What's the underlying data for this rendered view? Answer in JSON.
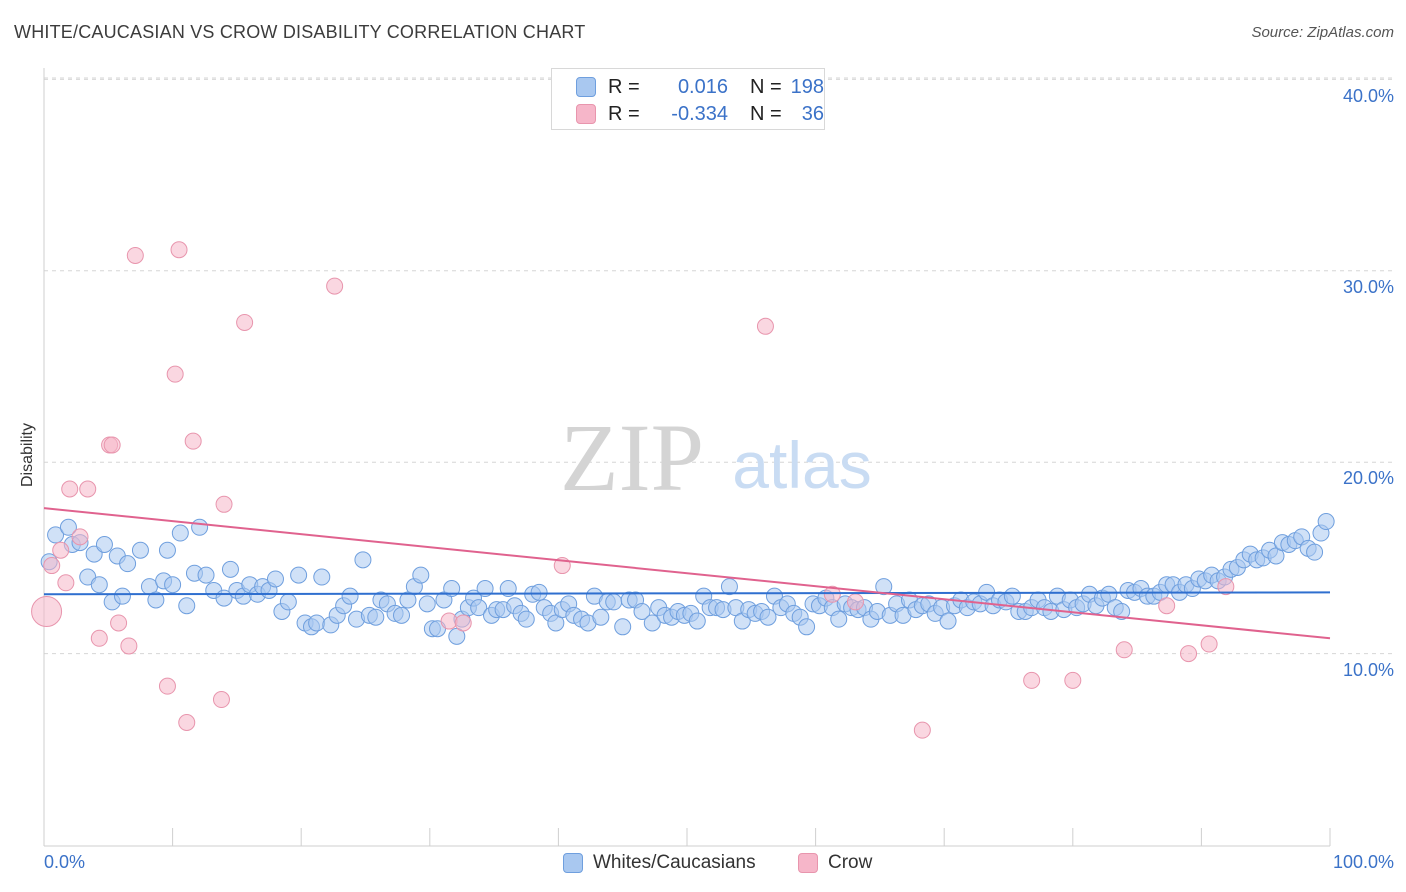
{
  "title": "WHITE/CAUCASIAN VS CROW DISABILITY CORRELATION CHART",
  "source": "Source: ZipAtlas.com",
  "watermark": {
    "zip": "ZIP",
    "atlas": "atlas"
  },
  "legend": {
    "series1": {
      "r_label": "R =",
      "r_value": "0.016",
      "n_label": "N =",
      "n_value": "198"
    },
    "series2": {
      "r_label": "R =",
      "r_value": "-0.334",
      "n_label": "N =",
      "n_value": "36"
    }
  },
  "colors": {
    "blue_fill": "#a9c8f0",
    "blue_stroke": "#6f9fde",
    "blue_line": "#2f6fcf",
    "pink_fill": "#f6b6c9",
    "pink_stroke": "#e895ad",
    "pink_line": "#e0628e",
    "axis_text": "#3b72c8"
  },
  "chart_data": {
    "type": "scatter",
    "title": "WHITE/CAUCASIAN VS CROW DISABILITY CORRELATION CHART",
    "xlabel": "",
    "ylabel": "Disability",
    "xlim": [
      0,
      100
    ],
    "ylim": [
      0,
      42
    ],
    "x_tick_labels": [
      "0.0%",
      "100.0%"
    ],
    "y_ticks": [
      10,
      20,
      30,
      40
    ],
    "y_tick_labels": [
      "10.0%",
      "20.0%",
      "30.0%",
      "40.0%"
    ],
    "legend_items": [
      "Whites/Caucasians",
      "Crow"
    ],
    "series": [
      {
        "name": "Whites/Caucasians",
        "trend": {
          "y_at_x0": 13.1,
          "y_at_x100": 13.2
        },
        "points": [
          [
            0.4,
            14.8
          ],
          [
            0.9,
            16.2
          ],
          [
            1.9,
            16.6
          ],
          [
            2.2,
            15.7
          ],
          [
            2.8,
            15.8
          ],
          [
            3.4,
            14.0
          ],
          [
            3.9,
            15.2
          ],
          [
            4.3,
            13.6
          ],
          [
            4.7,
            15.7
          ],
          [
            5.3,
            12.7
          ],
          [
            5.7,
            15.1
          ],
          [
            6.1,
            13.0
          ],
          [
            6.5,
            14.7
          ],
          [
            7.5,
            15.4
          ],
          [
            8.2,
            13.5
          ],
          [
            8.7,
            12.8
          ],
          [
            9.3,
            13.8
          ],
          [
            9.6,
            15.4
          ],
          [
            10.0,
            13.6
          ],
          [
            10.6,
            16.3
          ],
          [
            11.1,
            12.5
          ],
          [
            11.7,
            14.2
          ],
          [
            12.1,
            16.6
          ],
          [
            12.6,
            14.1
          ],
          [
            13.2,
            13.3
          ],
          [
            14.0,
            12.9
          ],
          [
            14.5,
            14.4
          ],
          [
            15.0,
            13.3
          ],
          [
            15.5,
            13.0
          ],
          [
            16.0,
            13.6
          ],
          [
            16.6,
            13.1
          ],
          [
            17.0,
            13.5
          ],
          [
            17.5,
            13.3
          ],
          [
            18.0,
            13.9
          ],
          [
            18.5,
            12.2
          ],
          [
            19.0,
            12.7
          ],
          [
            19.8,
            14.1
          ],
          [
            20.3,
            11.6
          ],
          [
            20.8,
            11.4
          ],
          [
            21.2,
            11.6
          ],
          [
            21.6,
            14.0
          ],
          [
            22.3,
            11.5
          ],
          [
            22.8,
            12.0
          ],
          [
            23.3,
            12.5
          ],
          [
            23.8,
            13.0
          ],
          [
            24.3,
            11.8
          ],
          [
            24.8,
            14.9
          ],
          [
            25.3,
            12.0
          ],
          [
            25.8,
            11.9
          ],
          [
            26.2,
            12.8
          ],
          [
            26.7,
            12.6
          ],
          [
            27.3,
            12.1
          ],
          [
            27.8,
            12.0
          ],
          [
            28.3,
            12.8
          ],
          [
            28.8,
            13.5
          ],
          [
            29.3,
            14.1
          ],
          [
            29.8,
            12.6
          ],
          [
            30.2,
            11.3
          ],
          [
            30.6,
            11.3
          ],
          [
            31.1,
            12.8
          ],
          [
            31.7,
            13.4
          ],
          [
            32.1,
            10.9
          ],
          [
            32.5,
            11.8
          ],
          [
            33.0,
            12.4
          ],
          [
            33.4,
            12.9
          ],
          [
            33.8,
            12.4
          ],
          [
            34.3,
            13.4
          ],
          [
            34.8,
            12.0
          ],
          [
            35.2,
            12.3
          ],
          [
            35.7,
            12.3
          ],
          [
            36.1,
            13.4
          ],
          [
            36.6,
            12.5
          ],
          [
            37.1,
            12.1
          ],
          [
            37.5,
            11.8
          ],
          [
            38.0,
            13.1
          ],
          [
            38.5,
            13.2
          ],
          [
            38.9,
            12.4
          ],
          [
            39.4,
            12.1
          ],
          [
            39.8,
            11.6
          ],
          [
            40.3,
            12.3
          ],
          [
            40.8,
            12.6
          ],
          [
            41.2,
            12.0
          ],
          [
            41.8,
            11.8
          ],
          [
            42.3,
            11.6
          ],
          [
            42.8,
            13.0
          ],
          [
            43.3,
            11.9
          ],
          [
            43.8,
            12.7
          ],
          [
            44.3,
            12.7
          ],
          [
            45.0,
            11.4
          ],
          [
            45.5,
            12.8
          ],
          [
            46.0,
            12.8
          ],
          [
            46.5,
            12.2
          ],
          [
            47.3,
            11.6
          ],
          [
            47.8,
            12.4
          ],
          [
            48.3,
            12.0
          ],
          [
            48.8,
            11.9
          ],
          [
            49.3,
            12.2
          ],
          [
            49.8,
            12.0
          ],
          [
            50.3,
            12.1
          ],
          [
            50.8,
            11.7
          ],
          [
            51.3,
            13.0
          ],
          [
            51.8,
            12.4
          ],
          [
            52.3,
            12.4
          ],
          [
            52.8,
            12.3
          ],
          [
            53.3,
            13.5
          ],
          [
            53.8,
            12.4
          ],
          [
            54.3,
            11.7
          ],
          [
            54.8,
            12.3
          ],
          [
            55.3,
            12.1
          ],
          [
            55.8,
            12.2
          ],
          [
            56.3,
            11.9
          ],
          [
            56.8,
            13.0
          ],
          [
            57.3,
            12.4
          ],
          [
            57.8,
            12.6
          ],
          [
            58.3,
            12.1
          ],
          [
            58.8,
            11.9
          ],
          [
            59.3,
            11.4
          ],
          [
            59.8,
            12.6
          ],
          [
            60.3,
            12.5
          ],
          [
            60.8,
            12.9
          ],
          [
            61.3,
            12.4
          ],
          [
            61.8,
            11.8
          ],
          [
            62.3,
            12.6
          ],
          [
            62.8,
            12.4
          ],
          [
            63.3,
            12.3
          ],
          [
            63.8,
            12.4
          ],
          [
            64.3,
            11.8
          ],
          [
            64.8,
            12.2
          ],
          [
            65.3,
            13.5
          ],
          [
            65.8,
            12.0
          ],
          [
            66.3,
            12.6
          ],
          [
            66.8,
            12.0
          ],
          [
            67.3,
            12.8
          ],
          [
            67.8,
            12.3
          ],
          [
            68.3,
            12.5
          ],
          [
            68.8,
            12.6
          ],
          [
            69.3,
            12.1
          ],
          [
            69.8,
            12.4
          ],
          [
            70.3,
            11.7
          ],
          [
            70.8,
            12.5
          ],
          [
            71.3,
            12.8
          ],
          [
            71.8,
            12.4
          ],
          [
            72.3,
            12.7
          ],
          [
            72.8,
            12.6
          ],
          [
            73.3,
            13.2
          ],
          [
            73.8,
            12.5
          ],
          [
            74.3,
            12.8
          ],
          [
            74.8,
            12.7
          ],
          [
            75.3,
            13.0
          ],
          [
            75.8,
            12.2
          ],
          [
            76.3,
            12.2
          ],
          [
            76.8,
            12.4
          ],
          [
            77.3,
            12.8
          ],
          [
            77.8,
            12.4
          ],
          [
            78.3,
            12.2
          ],
          [
            78.8,
            13.0
          ],
          [
            79.3,
            12.3
          ],
          [
            79.8,
            12.8
          ],
          [
            80.3,
            12.4
          ],
          [
            80.8,
            12.6
          ],
          [
            81.3,
            13.1
          ],
          [
            81.8,
            12.5
          ],
          [
            82.3,
            12.9
          ],
          [
            82.8,
            13.1
          ],
          [
            83.3,
            12.4
          ],
          [
            83.8,
            12.2
          ],
          [
            84.3,
            13.3
          ],
          [
            84.8,
            13.2
          ],
          [
            85.3,
            13.4
          ],
          [
            85.8,
            13.0
          ],
          [
            86.3,
            13.0
          ],
          [
            86.8,
            13.2
          ],
          [
            87.3,
            13.6
          ],
          [
            87.8,
            13.6
          ],
          [
            88.3,
            13.2
          ],
          [
            88.8,
            13.6
          ],
          [
            89.3,
            13.4
          ],
          [
            89.8,
            13.9
          ],
          [
            90.3,
            13.8
          ],
          [
            90.8,
            14.1
          ],
          [
            91.3,
            13.8
          ],
          [
            91.8,
            14.0
          ],
          [
            92.3,
            14.4
          ],
          [
            92.8,
            14.5
          ],
          [
            93.3,
            14.9
          ],
          [
            93.8,
            15.2
          ],
          [
            94.3,
            14.9
          ],
          [
            94.8,
            15.0
          ],
          [
            95.3,
            15.4
          ],
          [
            95.8,
            15.1
          ],
          [
            96.3,
            15.8
          ],
          [
            96.8,
            15.7
          ],
          [
            97.3,
            15.9
          ],
          [
            97.8,
            16.1
          ],
          [
            98.3,
            15.5
          ],
          [
            98.8,
            15.3
          ],
          [
            99.3,
            16.3
          ],
          [
            99.7,
            16.9
          ]
        ]
      },
      {
        "name": "Crow",
        "trend": {
          "y_at_x0": 17.6,
          "y_at_x100": 10.8
        },
        "points": [
          [
            0.2,
            12.2
          ],
          [
            0.6,
            14.6
          ],
          [
            1.3,
            15.4
          ],
          [
            1.7,
            13.7
          ],
          [
            2.0,
            18.6
          ],
          [
            2.8,
            16.1
          ],
          [
            3.4,
            18.6
          ],
          [
            4.3,
            10.8
          ],
          [
            5.1,
            20.9
          ],
          [
            5.3,
            20.9
          ],
          [
            5.8,
            11.6
          ],
          [
            6.6,
            10.4
          ],
          [
            7.1,
            30.8
          ],
          [
            9.6,
            8.3
          ],
          [
            10.2,
            24.6
          ],
          [
            10.5,
            31.1
          ],
          [
            11.1,
            6.4
          ],
          [
            11.6,
            21.1
          ],
          [
            13.8,
            7.6
          ],
          [
            14.0,
            17.8
          ],
          [
            15.6,
            27.3
          ],
          [
            22.6,
            29.2
          ],
          [
            31.5,
            11.7
          ],
          [
            32.6,
            11.6
          ],
          [
            40.3,
            14.6
          ],
          [
            56.1,
            27.1
          ],
          [
            61.3,
            13.1
          ],
          [
            63.1,
            12.7
          ],
          [
            68.3,
            6.0
          ],
          [
            76.8,
            8.6
          ],
          [
            80.0,
            8.6
          ],
          [
            84.0,
            10.2
          ],
          [
            87.3,
            12.5
          ],
          [
            89.0,
            10.0
          ],
          [
            90.6,
            10.5
          ],
          [
            91.9,
            13.5
          ]
        ]
      }
    ]
  }
}
